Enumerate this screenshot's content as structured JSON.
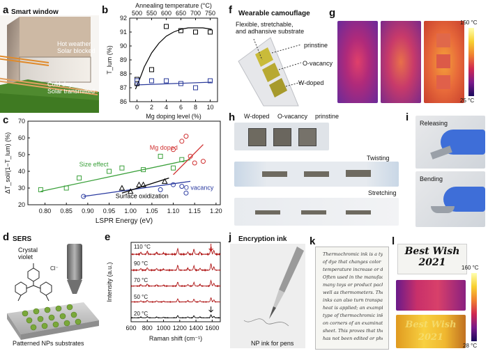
{
  "panels": {
    "a": {
      "label": "a",
      "title": "Smart window",
      "text_hot1": "Hot weather",
      "text_hot2": "Solar blocked",
      "text_cold1": "Cold day",
      "text_cold2": "Solar transmitted"
    },
    "b": {
      "label": "b"
    },
    "c": {
      "label": "c"
    },
    "d": {
      "label": "d",
      "title": "SERS",
      "crystal1": "Crystal",
      "crystal2": "violet",
      "substrate": "Patterned NPs substrates"
    },
    "e": {
      "label": "e"
    },
    "f": {
      "label": "f",
      "title": "Wearable camouflage",
      "sub1": "Flexible, stretchable,",
      "sub2": "and adhansive substrate",
      "prinstine": "prinstine",
      "ovacancy": "O-vacancy",
      "wdoped": "W-doped"
    },
    "g": {
      "label": "g",
      "scale_top": "150 °C",
      "scale_bot": "25 °C"
    },
    "h": {
      "label": "h",
      "wdoped": "W-doped",
      "ovacancy": "O-vacancy",
      "prinstine": "prinstine",
      "twisting": "Twisting",
      "stretching": "Stretching"
    },
    "i": {
      "label": "i",
      "releasing": "Releasing",
      "bending": "Bending"
    },
    "j": {
      "label": "j",
      "title": "Encryption ink",
      "caption": "NP ink for pens"
    },
    "k": {
      "label": "k",
      "lines": [
        "Thermochromic ink is a type",
        "of dye that changes color when",
        "temperature increase or decrease.",
        "Often used in the manufacturing of",
        "many toys or product packaging, as",
        "well as thermometers. Thermochromic",
        "inks can also turn transparent when",
        "heat is applied; an example of this",
        "type of thermochromic ink is found",
        "on corners of an examination mark",
        "sheet. This proves that the sheet",
        "has not been edited or photocopied."
      ]
    },
    "l": {
      "label": "l",
      "text1": "Best Wish",
      "text2": "2021",
      "scale_top": "160 °C",
      "scale_bot": "28 °C"
    }
  },
  "chart_data": [
    {
      "type": "scatter",
      "panel": "b",
      "xlabel": "Mg doping level (%)",
      "ylabel": "T_lum (%)",
      "x2label": "Annealing temperature (°C)",
      "xlim": [
        -1,
        11
      ],
      "ylim": [
        86,
        92
      ],
      "x_ticks": [
        0,
        2,
        4,
        6,
        8,
        10
      ],
      "y_ticks": [
        86,
        87,
        88,
        89,
        90,
        91,
        92
      ],
      "x2_ticks": [
        "500",
        "550",
        "600",
        "650",
        "700",
        "750"
      ],
      "series": [
        {
          "marker": "square",
          "color": "#000000",
          "x": [
            0,
            0,
            2,
            2,
            4,
            6,
            8,
            10
          ],
          "y": [
            87.3,
            87.6,
            88.3,
            87.5,
            91.4,
            91.1,
            91.0,
            91.0
          ]
        },
        {
          "marker": "square",
          "color": "#2a3a9a",
          "x": [
            0,
            2,
            4,
            6,
            8,
            10
          ],
          "y": [
            87.5,
            87.5,
            87.5,
            87.3,
            87.0,
            87.5
          ]
        }
      ],
      "fits": [
        {
          "color": "#000000",
          "x": [
            -0.2,
            0.5,
            1,
            2,
            3,
            4,
            5,
            6,
            7,
            8,
            9,
            10.2
          ],
          "y": [
            86.9,
            87.8,
            88.5,
            89.5,
            90.2,
            90.7,
            91.0,
            91.2,
            91.3,
            91.3,
            91.3,
            91.2
          ]
        },
        {
          "color": "#2a3a9a",
          "x": [
            -0.2,
            10.2
          ],
          "y": [
            87.2,
            87.4
          ]
        }
      ]
    },
    {
      "type": "scatter",
      "panel": "c",
      "xlabel": "LSPR Energy (eV)",
      "ylabel": "ΔT_sol/(1−T_lum) (%)",
      "xlim": [
        0.76,
        1.21
      ],
      "ylim": [
        20,
        70
      ],
      "x_ticks": [
        0.8,
        0.85,
        0.9,
        0.95,
        1.0,
        1.05,
        1.1,
        1.15,
        1.2
      ],
      "y_ticks": [
        20,
        30,
        40,
        50,
        60,
        70
      ],
      "series": [
        {
          "name": "Size effect",
          "marker": "square",
          "color": "#3aa03a",
          "x": [
            0.79,
            0.85,
            0.88,
            0.95,
            0.98,
            1.03,
            1.07,
            1.1,
            1.12
          ],
          "y": [
            29,
            30,
            36,
            40,
            42,
            41,
            49,
            42,
            47
          ]
        },
        {
          "name": "Mg doped",
          "marker": "circle",
          "color": "#d03030",
          "x": [
            1.1,
            1.12,
            1.13,
            1.14,
            1.15,
            1.17
          ],
          "y": [
            53,
            58,
            61,
            49,
            45,
            46
          ]
        },
        {
          "name": "O vacancy",
          "marker": "circle",
          "color": "#2a3aa0",
          "x": [
            0.89,
            1.07,
            1.1,
            1.12,
            1.13
          ],
          "y": [
            25,
            29,
            32,
            31,
            27
          ]
        },
        {
          "name": "Surface oxidization",
          "marker": "triangle",
          "color": "#000000",
          "x": [
            0.98,
            1.0,
            1.02,
            1.03,
            1.08
          ],
          "y": [
            30,
            28,
            32,
            32,
            34
          ]
        }
      ],
      "fits": [
        {
          "color": "#3aa03a",
          "x": [
            0.79,
            1.14
          ],
          "y": [
            28,
            47
          ]
        },
        {
          "color": "#d03030",
          "x": [
            1.1,
            1.17
          ],
          "y": [
            38,
            56
          ]
        },
        {
          "color": "#2a3aa0",
          "x": [
            0.89,
            1.14
          ],
          "y": [
            25,
            34
          ]
        },
        {
          "color": "#000000",
          "x": [
            0.98,
            1.09
          ],
          "y": [
            27,
            36
          ]
        }
      ]
    },
    {
      "type": "line",
      "panel": "e",
      "xlabel": "Raman shift (cm⁻¹)",
      "ylabel": "Intensity (a.u.)",
      "xlim": [
        600,
        1700
      ],
      "x_ticks": [
        600,
        800,
        1000,
        1200,
        1400,
        1600
      ],
      "series": [
        {
          "name": "110 °C",
          "color": "#b01818"
        },
        {
          "name": "90 °C",
          "color": "#b01818"
        },
        {
          "name": "70 °C",
          "color": "#b01818"
        },
        {
          "name": "50 °C",
          "color": "#b01818"
        },
        {
          "name": "20 °C",
          "color": "#000000"
        }
      ],
      "peaks": [
        {
          "x": 720,
          "h": 0.3
        },
        {
          "x": 800,
          "h": 0.45
        },
        {
          "x": 915,
          "h": 0.3
        },
        {
          "x": 1000,
          "h": 0.2
        },
        {
          "x": 1175,
          "h": 0.9
        },
        {
          "x": 1300,
          "h": 0.35
        },
        {
          "x": 1375,
          "h": 0.8
        },
        {
          "x": 1450,
          "h": 0.35
        },
        {
          "x": 1585,
          "h": 1.2
        },
        {
          "x": 1620,
          "h": 0.6
        }
      ]
    }
  ],
  "colors": {
    "green": "#3aa03a",
    "red": "#d03030",
    "blue": "#2a3aa0",
    "bluebg": "#d9e6f2"
  }
}
